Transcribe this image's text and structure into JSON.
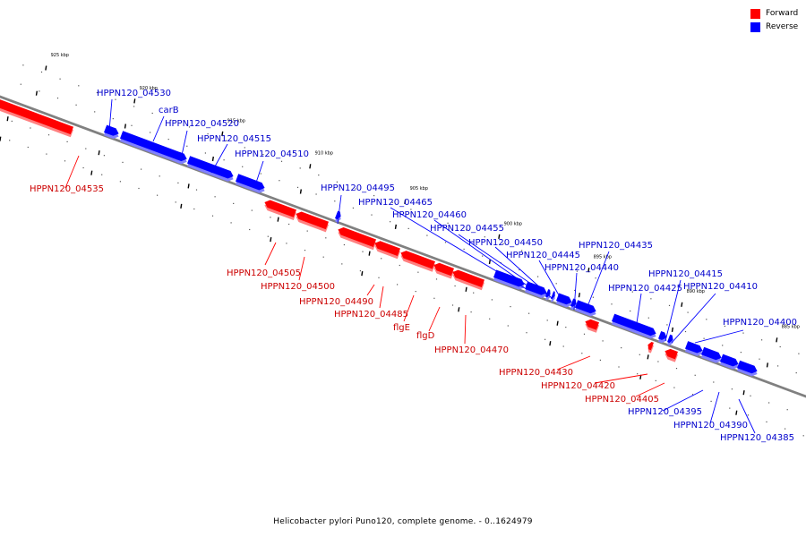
{
  "legend": {
    "forward": {
      "label": "Forward",
      "color": "#ff0000"
    },
    "reverse": {
      "label": "Reverse",
      "color": "#0000ff"
    }
  },
  "caption": {
    "title": "Helicobacter pylori Puno120, complete genome.",
    "range": "- 0..1624979"
  },
  "axis": {
    "ticks": [
      "925 kbp",
      "920 kbp",
      "915 kbp",
      "910 kbp",
      "905 kbp",
      "900 kbp",
      "895 kbp",
      "890 kbp",
      "885 kbp"
    ]
  },
  "colors": {
    "forward": "#ff0000",
    "forward_shadow": "#ff8080",
    "reverse": "#0000ff",
    "reverse_shadow": "#8080ff",
    "backbone": "#808080"
  },
  "genes": [
    {
      "name": "HPPN120_04535",
      "strand": "forward"
    },
    {
      "name": "HPPN120_04530",
      "strand": "reverse"
    },
    {
      "name": "carB",
      "strand": "reverse"
    },
    {
      "name": "HPPN120_04520",
      "strand": "reverse"
    },
    {
      "name": "HPPN120_04515",
      "strand": "reverse"
    },
    {
      "name": "HPPN120_04510",
      "strand": "reverse"
    },
    {
      "name": "HPPN120_04505",
      "strand": "forward"
    },
    {
      "name": "HPPN120_04500",
      "strand": "forward"
    },
    {
      "name": "HPPN120_04495",
      "strand": "reverse"
    },
    {
      "name": "HPPN120_04490",
      "strand": "forward"
    },
    {
      "name": "HPPN120_04485",
      "strand": "forward"
    },
    {
      "name": "flgE",
      "strand": "forward"
    },
    {
      "name": "flgD",
      "strand": "forward"
    },
    {
      "name": "HPPN120_04470",
      "strand": "forward"
    },
    {
      "name": "HPPN120_04465",
      "strand": "reverse"
    },
    {
      "name": "HPPN120_04460",
      "strand": "reverse"
    },
    {
      "name": "HPPN120_04455",
      "strand": "reverse"
    },
    {
      "name": "HPPN120_04450",
      "strand": "reverse"
    },
    {
      "name": "HPPN120_04445",
      "strand": "reverse"
    },
    {
      "name": "HPPN120_04440",
      "strand": "reverse"
    },
    {
      "name": "HPPN120_04435",
      "strand": "reverse"
    },
    {
      "name": "HPPN120_04430",
      "strand": "forward"
    },
    {
      "name": "HPPN120_04425",
      "strand": "reverse"
    },
    {
      "name": "HPPN120_04420",
      "strand": "forward"
    },
    {
      "name": "HPPN120_04415",
      "strand": "reverse"
    },
    {
      "name": "HPPN120_04410",
      "strand": "reverse"
    },
    {
      "name": "HPPN120_04405",
      "strand": "forward"
    },
    {
      "name": "HPPN120_04400",
      "strand": "reverse"
    },
    {
      "name": "HPPN120_04395",
      "strand": "reverse"
    },
    {
      "name": "HPPN120_04390",
      "strand": "reverse"
    },
    {
      "name": "HPPN120_04385",
      "strand": "reverse"
    }
  ]
}
